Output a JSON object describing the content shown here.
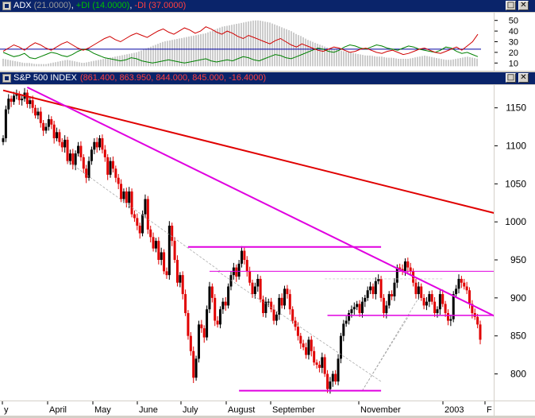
{
  "adx_pane": {
    "title_name": "ADX",
    "title_adx": "(21.0000)",
    "title_pdi": "+DI (14.0000)",
    "title_mdi": "-DI (37.0000)",
    "colors": {
      "adx": "#9a9a9a",
      "pdi": "#008000",
      "mdi": "#d00000",
      "ref": "#0000a0"
    }
  },
  "price_pane": {
    "title_name": "S&P 500 INDEX",
    "title_values": "(861.400, 863.950, 844.000, 845.000, -16.4000)"
  },
  "window_buttons": {
    "restore": "□",
    "close": "✕"
  },
  "colors": {
    "up_bar": "#000000",
    "down_bar": "#e00000",
    "trend_red": "#e00000",
    "trend_magenta": "#e000e0"
  },
  "chart_data": [
    {
      "type": "line",
      "title": "ADX (21.0000), +DI (14.0000), -DI (37.0000)",
      "ylim": [
        5,
        55
      ],
      "yticks": [
        10,
        20,
        30,
        40,
        50
      ],
      "reference_line": 23,
      "series": [
        {
          "name": "ADX",
          "style": "histogram",
          "values": [
            14,
            13,
            12,
            11,
            10,
            10,
            9,
            9,
            9,
            10,
            11,
            12,
            13,
            12,
            11,
            10,
            11,
            12,
            13,
            14,
            15,
            16,
            17,
            18,
            19,
            20,
            22,
            24,
            26,
            28,
            30,
            31,
            32,
            33,
            34,
            35,
            36,
            37,
            38,
            40,
            42,
            44,
            45,
            46,
            47,
            48,
            49,
            50,
            50,
            49,
            48,
            46,
            44,
            42,
            40,
            37,
            35,
            32,
            30,
            28,
            26,
            24,
            23,
            22,
            21,
            20,
            19,
            18,
            17,
            17,
            16,
            16,
            15,
            15,
            14,
            14,
            14,
            15,
            16,
            17,
            16,
            15,
            14,
            13,
            13,
            14,
            15,
            16,
            15,
            14
          ]
        },
        {
          "name": "+DI",
          "values": [
            20,
            18,
            16,
            17,
            19,
            15,
            14,
            16,
            18,
            20,
            19,
            17,
            16,
            18,
            21,
            23,
            22,
            19,
            17,
            15,
            14,
            13,
            12,
            13,
            15,
            14,
            12,
            11,
            10,
            11,
            12,
            13,
            12,
            11,
            10,
            11,
            12,
            13,
            14,
            12,
            11,
            12,
            13,
            12,
            14,
            16,
            15,
            13,
            12,
            14,
            16,
            18,
            17,
            15,
            14,
            16,
            18,
            20,
            22,
            24,
            23,
            21,
            20,
            22,
            25,
            27,
            26,
            24,
            23,
            25,
            27,
            26,
            24,
            23,
            22,
            24,
            26,
            25,
            23,
            22,
            21,
            20,
            22,
            25,
            24,
            21,
            19,
            20,
            18,
            16
          ]
        },
        {
          "name": "-DI",
          "values": [
            21,
            24,
            27,
            25,
            22,
            26,
            29,
            27,
            24,
            22,
            25,
            28,
            30,
            27,
            24,
            22,
            24,
            27,
            30,
            33,
            35,
            32,
            30,
            33,
            36,
            38,
            36,
            34,
            37,
            40,
            42,
            39,
            37,
            40,
            43,
            41,
            38,
            40,
            44,
            42,
            39,
            37,
            40,
            38,
            35,
            33,
            36,
            34,
            32,
            30,
            28,
            31,
            33,
            30,
            27,
            25,
            28,
            26,
            24,
            22,
            21,
            23,
            25,
            24,
            22,
            20,
            21,
            23,
            24,
            22,
            20,
            19,
            21,
            22,
            20,
            18,
            19,
            21,
            23,
            24,
            22,
            20,
            19,
            21,
            23,
            25,
            22,
            26,
            30,
            37
          ]
        }
      ]
    },
    {
      "type": "candlestick",
      "title": "S&P 500 INDEX",
      "ylim": [
        765,
        1180
      ],
      "yticks": [
        800,
        850,
        900,
        950,
        1000,
        1050,
        1100,
        1150
      ],
      "x_labels": [
        "y",
        "April",
        "May",
        "June",
        "July",
        "August",
        "September",
        "November",
        "2003",
        "F"
      ],
      "series": [
        {
          "name": "S&P 500 INDEX",
          "close": [
            1110,
            1148,
            1162,
            1158,
            1166,
            1168,
            1160,
            1162,
            1170,
            1155,
            1160,
            1150,
            1140,
            1145,
            1130,
            1120,
            1125,
            1135,
            1128,
            1110,
            1118,
            1105,
            1098,
            1108,
            1080,
            1090,
            1075,
            1090,
            1100,
            1085,
            1070,
            1058,
            1080,
            1095,
            1105,
            1098,
            1110,
            1095,
            1085,
            1062,
            1080,
            1070,
            1058,
            1050,
            1030,
            1040,
            1025,
            1040,
            1010,
            1005,
            995,
            985,
            1010,
            1030,
            990,
            980,
            965,
            975,
            950,
            960,
            935,
            930,
            995,
            975,
            950,
            920,
            930,
            905,
            880,
            850,
            830,
            795,
            820,
            865,
            860,
            848,
            885,
            915,
            900,
            870,
            865,
            885,
            895,
            890,
            915,
            930,
            940,
            928,
            945,
            962,
            950,
            935,
            920,
            905,
            915,
            925,
            898,
            880,
            895,
            895,
            885,
            870,
            878,
            900,
            890,
            912,
            905,
            885,
            870,
            862,
            850,
            840,
            835,
            825,
            845,
            830,
            815,
            812,
            808,
            822,
            800,
            780,
            790,
            800,
            790,
            820,
            850,
            866,
            870,
            880,
            885,
            888,
            892,
            880,
            895,
            900,
            910,
            915,
            905,
            922,
            925,
            900,
            880,
            890,
            905,
            902,
            920,
            940,
            938,
            935,
            948,
            940,
            935,
            920,
            905,
            915,
            900,
            890,
            895,
            905,
            895,
            880,
            885,
            905,
            892,
            880,
            870,
            872,
            905,
            912,
            925,
            920,
            915,
            910,
            892,
            880,
            875,
            865,
            845
          ]
        }
      ]
    }
  ]
}
